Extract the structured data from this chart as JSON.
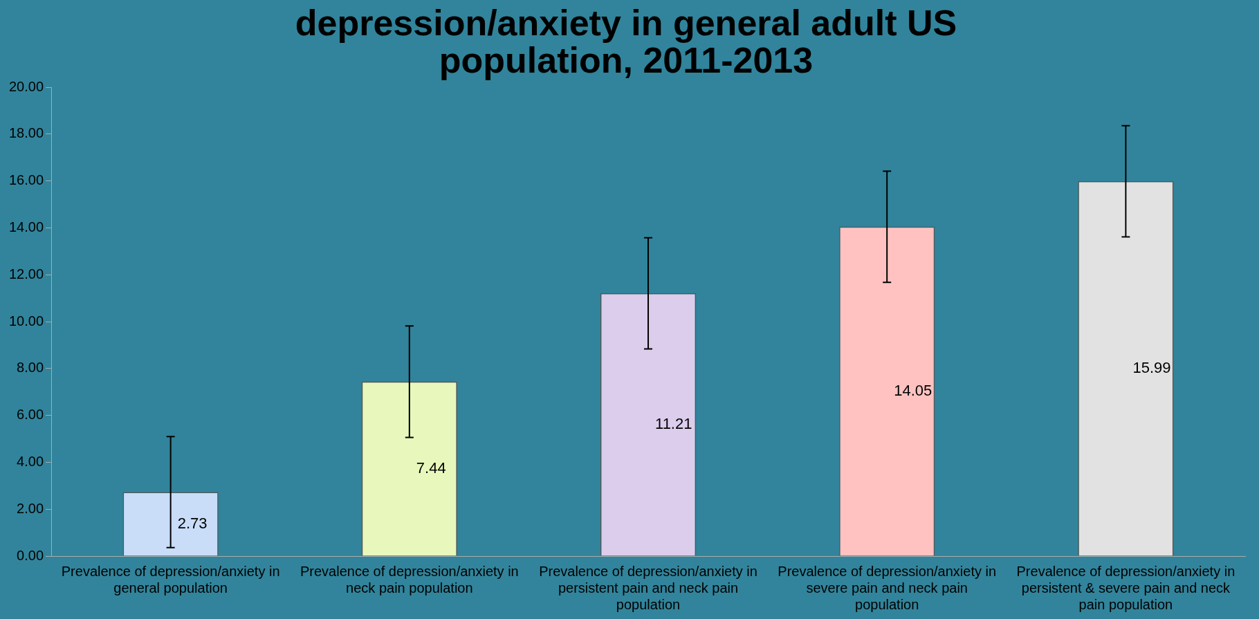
{
  "chart_data": {
    "type": "bar",
    "title": "depression/anxiety in general adult US population, 2011-2013",
    "categories": [
      "Prevalence of depression/anxiety in general population",
      "Prevalence of depression/anxiety in neck pain population",
      "Prevalence of depression/anxiety in persistent pain and neck pain population",
      "Prevalence of depression/anxiety in severe pain and neck pain population",
      "Prevalence of depression/anxiety in persistent & severe pain and neck pain population"
    ],
    "values": [
      2.73,
      7.44,
      11.21,
      14.05,
      15.99
    ],
    "errors": [
      2.37,
      2.38,
      2.37,
      2.37,
      2.37
    ],
    "colors": [
      "#c9dcf8",
      "#e8f8bc",
      "#dccdec",
      "#ffc2c0",
      "#e2e2e2"
    ],
    "ylim": [
      0,
      20
    ],
    "yticks": [
      {
        "value": 0,
        "label": "0.00"
      },
      {
        "value": 2,
        "label": "2.00"
      },
      {
        "value": 4,
        "label": "4.00"
      },
      {
        "value": 6,
        "label": "6.00"
      },
      {
        "value": 8,
        "label": "8.00"
      },
      {
        "value": 10,
        "label": "10.00"
      },
      {
        "value": 12,
        "label": "12.00"
      },
      {
        "value": 14,
        "label": "14.00"
      },
      {
        "value": 16,
        "label": "16.00"
      },
      {
        "value": 18,
        "label": "18.00"
      },
      {
        "value": 20,
        "label": "20.00"
      }
    ],
    "data_labels": true,
    "grid": false,
    "legend": false
  }
}
